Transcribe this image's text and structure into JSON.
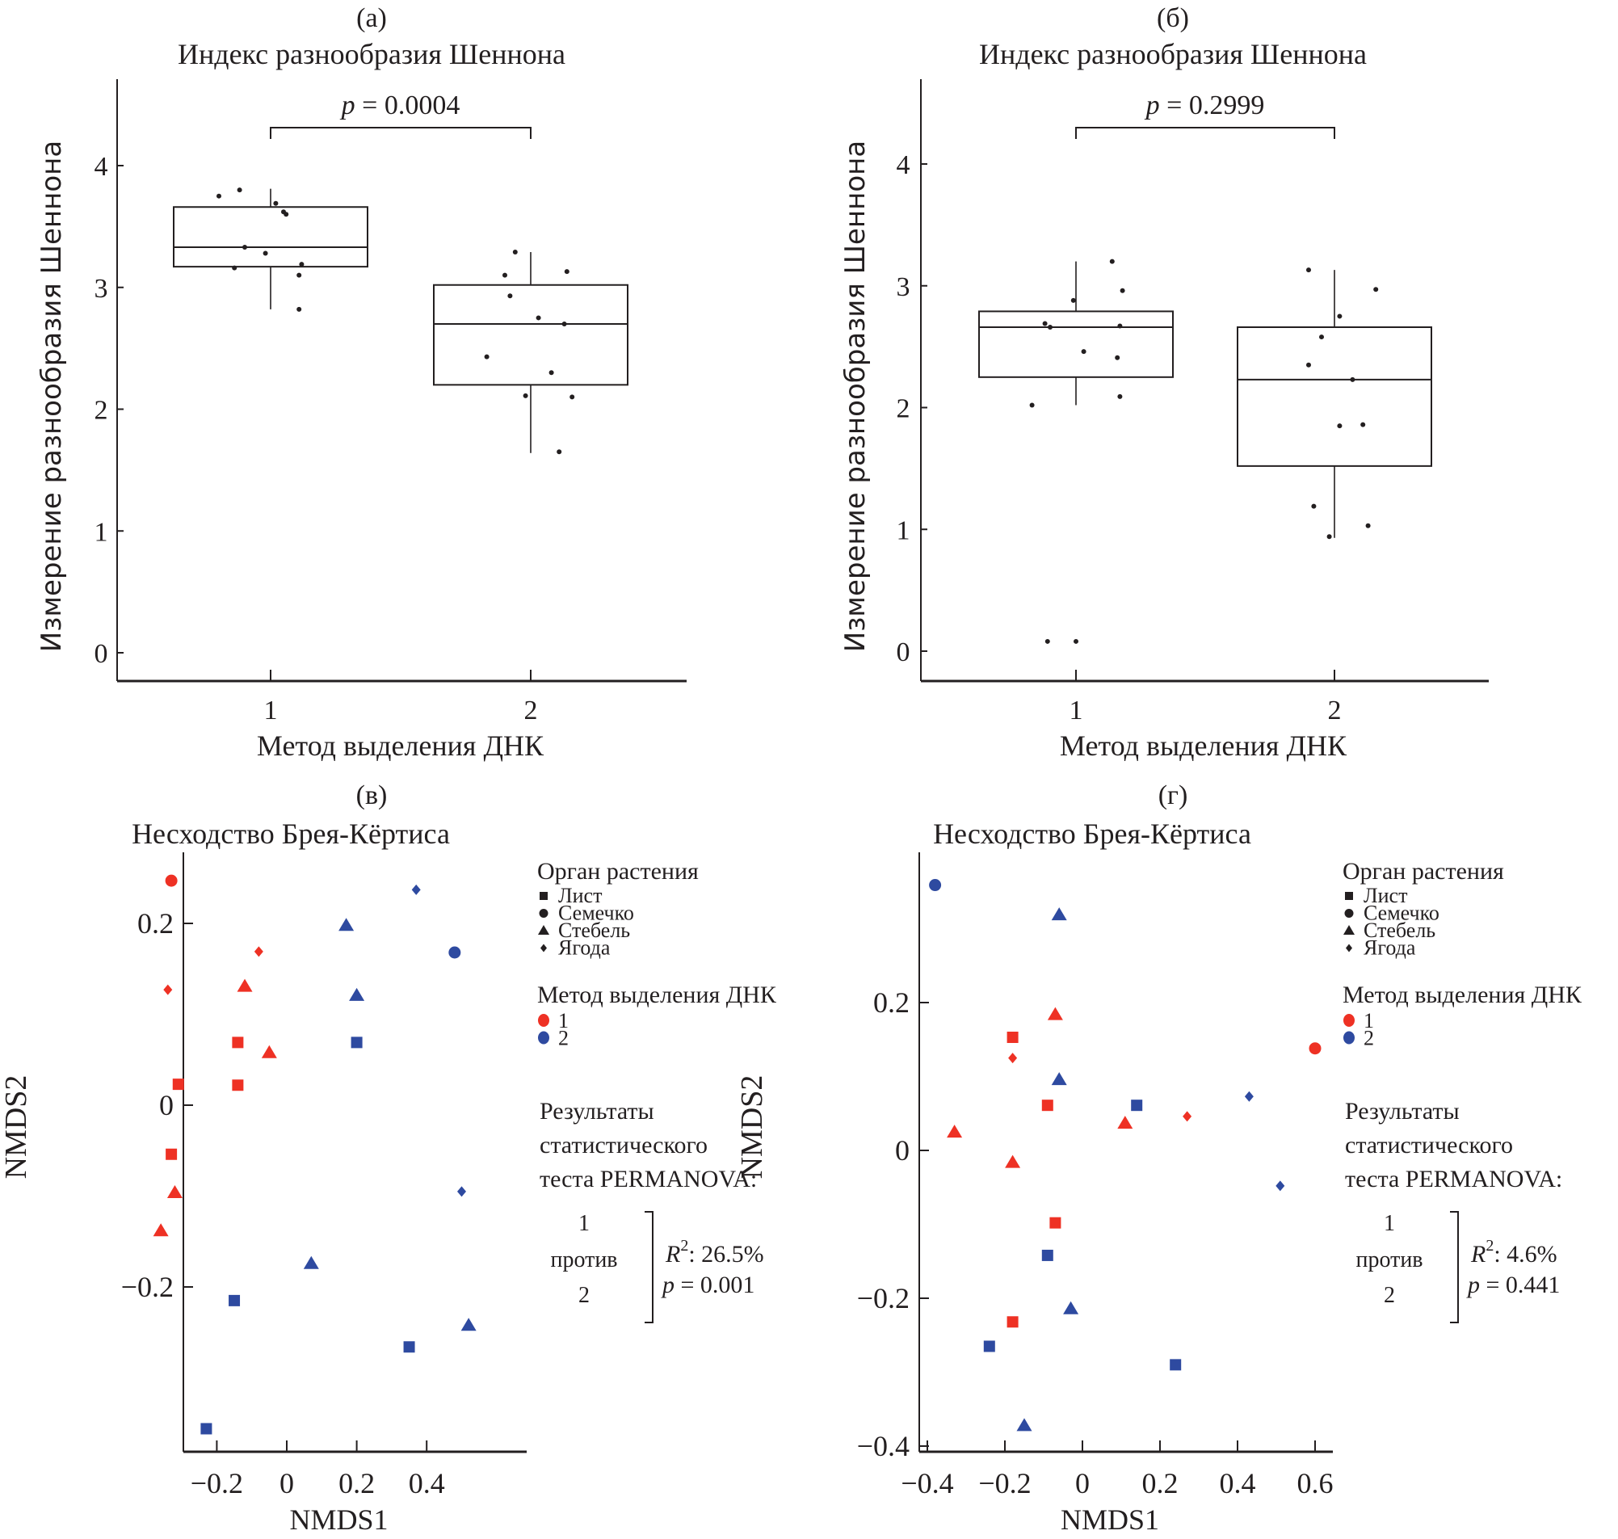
{
  "chart_data": [
    {
      "id": "a",
      "type": "box",
      "panel_label": "(а)",
      "title": "Индекс разнообразия Шеннона",
      "xlabel": "Метод выделения ДНК",
      "ylabel": "Измерение разнообразия Шеннона",
      "categories": [
        "1",
        "2"
      ],
      "yticks": [
        "0",
        "1",
        "2",
        "3",
        "4"
      ],
      "ylim": [
        -0.22,
        4.7
      ],
      "annotation": {
        "p_symbol": "p",
        "text": " = 0.0004"
      },
      "boxes": [
        {
          "name": "1",
          "q1": 3.17,
          "median": 3.33,
          "q3": 3.66,
          "whisker_low": 2.82,
          "whisker_high": 3.81,
          "points": [
            [
              -0.2,
              3.75
            ],
            [
              -0.12,
              3.8
            ],
            [
              0.02,
              3.69
            ],
            [
              0.05,
              3.62
            ],
            [
              0.06,
              3.6
            ],
            [
              -0.1,
              3.33
            ],
            [
              -0.02,
              3.28
            ],
            [
              -0.14,
              3.16
            ],
            [
              0.12,
              3.19
            ],
            [
              0.11,
              3.1
            ],
            [
              0.11,
              2.82
            ]
          ]
        },
        {
          "name": "2",
          "q1": 2.2,
          "median": 2.7,
          "q3": 3.02,
          "whisker_low": 1.64,
          "whisker_high": 3.29,
          "points": [
            [
              -0.06,
              3.29
            ],
            [
              -0.1,
              3.1
            ],
            [
              0.14,
              3.13
            ],
            [
              -0.08,
              2.93
            ],
            [
              0.03,
              2.75
            ],
            [
              0.13,
              2.7
            ],
            [
              -0.17,
              2.43
            ],
            [
              0.08,
              2.3
            ],
            [
              -0.02,
              2.11
            ],
            [
              0.16,
              2.1
            ],
            [
              0.11,
              1.65
            ]
          ]
        }
      ]
    },
    {
      "id": "b",
      "type": "box",
      "panel_label": "(б)",
      "title": "Индекс разнообразия Шеннона",
      "xlabel": "Метод выделения ДНК",
      "ylabel": "Измерение разнообразия Шеннона",
      "categories": [
        "1",
        "2"
      ],
      "yticks": [
        "0",
        "1",
        "2",
        "3",
        "4"
      ],
      "ylim": [
        -0.22,
        4.7
      ],
      "annotation": {
        "p_symbol": "p",
        "text": " = 0.2999"
      },
      "boxes": [
        {
          "name": "1",
          "q1": 2.25,
          "median": 2.66,
          "q3": 2.79,
          "whisker_low": 2.02,
          "whisker_high": 3.2,
          "points": [
            [
              0.14,
              3.2
            ],
            [
              0.18,
              2.96
            ],
            [
              -0.01,
              2.88
            ],
            [
              -0.12,
              2.69
            ],
            [
              -0.1,
              2.66
            ],
            [
              0.17,
              2.67
            ],
            [
              0.03,
              2.46
            ],
            [
              0.16,
              2.41
            ],
            [
              0.17,
              2.09
            ],
            [
              -0.17,
              2.02
            ],
            [
              -0.11,
              0.08
            ],
            [
              0.0,
              0.08
            ]
          ]
        },
        {
          "name": "2",
          "q1": 1.52,
          "median": 2.23,
          "q3": 2.66,
          "whisker_low": 0.93,
          "whisker_high": 3.13,
          "points": [
            [
              -0.1,
              3.13
            ],
            [
              0.16,
              2.97
            ],
            [
              0.02,
              2.75
            ],
            [
              -0.05,
              2.58
            ],
            [
              -0.1,
              2.35
            ],
            [
              0.07,
              2.23
            ],
            [
              0.02,
              1.85
            ],
            [
              0.11,
              1.86
            ],
            [
              -0.08,
              1.19
            ],
            [
              -0.02,
              0.94
            ],
            [
              0.13,
              1.03
            ]
          ]
        }
      ]
    },
    {
      "id": "v",
      "type": "scatter",
      "panel_label": "(в)",
      "title": "Несходство Брея-Кёртиса",
      "xlabel": "NMDS1",
      "ylabel": "NMDS2",
      "xticks": [
        "−0.2",
        "0",
        "0.2",
        "0.4"
      ],
      "xtick_values": [
        -0.2,
        0,
        0.2,
        0.4
      ],
      "yticks": [
        "0.2",
        "0",
        "−0.2"
      ],
      "ytick_values": [
        0.2,
        0,
        -0.2
      ],
      "xlim": [
        -0.4,
        0.56
      ],
      "ylim": [
        -0.37,
        0.28
      ],
      "points": [
        {
          "x": -0.33,
          "y": 0.247,
          "organ": "seed",
          "method": "1"
        },
        {
          "x": -0.08,
          "y": 0.169,
          "organ": "berry",
          "method": "1"
        },
        {
          "x": -0.34,
          "y": 0.127,
          "organ": "berry",
          "method": "1"
        },
        {
          "x": -0.12,
          "y": 0.131,
          "organ": "stem",
          "method": "1"
        },
        {
          "x": -0.05,
          "y": 0.058,
          "organ": "stem",
          "method": "1"
        },
        {
          "x": -0.14,
          "y": 0.069,
          "organ": "leaf",
          "method": "1"
        },
        {
          "x": -0.31,
          "y": 0.023,
          "organ": "leaf",
          "method": "1"
        },
        {
          "x": -0.14,
          "y": 0.022,
          "organ": "leaf",
          "method": "1"
        },
        {
          "x": -0.33,
          "y": -0.054,
          "organ": "leaf",
          "method": "1"
        },
        {
          "x": -0.32,
          "y": -0.096,
          "organ": "stem",
          "method": "1"
        },
        {
          "x": -0.36,
          "y": -0.138,
          "organ": "stem",
          "method": "1"
        },
        {
          "x": 0.37,
          "y": 0.237,
          "organ": "berry",
          "method": "2"
        },
        {
          "x": 0.17,
          "y": 0.198,
          "organ": "stem",
          "method": "2"
        },
        {
          "x": 0.48,
          "y": 0.168,
          "organ": "seed",
          "method": "2"
        },
        {
          "x": 0.2,
          "y": 0.121,
          "organ": "stem",
          "method": "2"
        },
        {
          "x": 0.2,
          "y": 0.069,
          "organ": "leaf",
          "method": "2"
        },
        {
          "x": 0.5,
          "y": -0.095,
          "organ": "berry",
          "method": "2"
        },
        {
          "x": 0.07,
          "y": -0.174,
          "organ": "stem",
          "method": "2"
        },
        {
          "x": -0.15,
          "y": -0.215,
          "organ": "leaf",
          "method": "2"
        },
        {
          "x": 0.52,
          "y": -0.242,
          "organ": "stem",
          "method": "2"
        },
        {
          "x": 0.35,
          "y": -0.266,
          "organ": "leaf",
          "method": "2"
        },
        {
          "x": -0.23,
          "y": -0.356,
          "organ": "leaf",
          "method": "2"
        }
      ],
      "permanova": {
        "group_a": "1",
        "vs": "против",
        "group_b": "2",
        "r2_symbol": "R",
        "r2_sup": "2",
        "r2_text": ": 26.5%",
        "p_symbol": "p",
        "p_text": " = 0.001"
      }
    },
    {
      "id": "g",
      "type": "scatter",
      "panel_label": "(г)",
      "title": "Несходство Брея-Кёртиса",
      "xlabel": "NMDS1",
      "ylabel": "NMDS2",
      "xticks": [
        "−0.4",
        "−0.2",
        "0",
        "0.2",
        "0.4",
        "0.6"
      ],
      "xtick_values": [
        -0.4,
        -0.2,
        0,
        0.2,
        0.4,
        0.6
      ],
      "yticks": [
        "0.2",
        "0",
        "−0.2",
        "−0.4"
      ],
      "ytick_values": [
        0.2,
        0,
        -0.2,
        -0.4
      ],
      "xlim": [
        -0.42,
        0.64
      ],
      "ylim": [
        -0.405,
        0.39
      ],
      "points": [
        {
          "x": -0.38,
          "y": 0.359,
          "organ": "seed",
          "method": "2"
        },
        {
          "x": -0.06,
          "y": 0.319,
          "organ": "stem",
          "method": "2"
        },
        {
          "x": -0.07,
          "y": 0.184,
          "organ": "stem",
          "method": "1"
        },
        {
          "x": -0.18,
          "y": 0.153,
          "organ": "leaf",
          "method": "1"
        },
        {
          "x": -0.18,
          "y": 0.125,
          "organ": "berry",
          "method": "1"
        },
        {
          "x": 0.6,
          "y": 0.138,
          "organ": "seed",
          "method": "1"
        },
        {
          "x": -0.06,
          "y": 0.096,
          "organ": "stem",
          "method": "2"
        },
        {
          "x": -0.09,
          "y": 0.061,
          "organ": "leaf",
          "method": "1"
        },
        {
          "x": 0.14,
          "y": 0.061,
          "organ": "leaf",
          "method": "2"
        },
        {
          "x": 0.43,
          "y": 0.073,
          "organ": "berry",
          "method": "2"
        },
        {
          "x": 0.27,
          "y": 0.046,
          "organ": "berry",
          "method": "1"
        },
        {
          "x": 0.11,
          "y": 0.037,
          "organ": "stem",
          "method": "1"
        },
        {
          "x": -0.33,
          "y": 0.025,
          "organ": "stem",
          "method": "1"
        },
        {
          "x": -0.18,
          "y": -0.016,
          "organ": "stem",
          "method": "1"
        },
        {
          "x": 0.51,
          "y": -0.048,
          "organ": "berry",
          "method": "2"
        },
        {
          "x": -0.07,
          "y": -0.098,
          "organ": "leaf",
          "method": "1"
        },
        {
          "x": -0.09,
          "y": -0.142,
          "organ": "leaf",
          "method": "2"
        },
        {
          "x": -0.03,
          "y": -0.214,
          "organ": "stem",
          "method": "2"
        },
        {
          "x": -0.18,
          "y": -0.232,
          "organ": "leaf",
          "method": "1"
        },
        {
          "x": -0.24,
          "y": -0.265,
          "organ": "leaf",
          "method": "2"
        },
        {
          "x": 0.24,
          "y": -0.29,
          "organ": "leaf",
          "method": "2"
        },
        {
          "x": -0.15,
          "y": -0.372,
          "organ": "stem",
          "method": "2"
        }
      ],
      "permanova": {
        "group_a": "1",
        "vs": "против",
        "group_b": "2",
        "r2_symbol": "R",
        "r2_sup": "2",
        "r2_text": ": 4.6%",
        "p_symbol": "p",
        "p_text": " = 0.441"
      }
    }
  ],
  "legend": {
    "organ_title": "Орган растения",
    "organs": [
      {
        "key": "leaf",
        "label": "Лист",
        "shape": "square"
      },
      {
        "key": "seed",
        "label": "Семечко",
        "shape": "circle"
      },
      {
        "key": "stem",
        "label": "Стебель",
        "shape": "triangle"
      },
      {
        "key": "berry",
        "label": "Ягода",
        "shape": "diamond"
      }
    ],
    "method_title": "Метод выделения ДНК",
    "methods": [
      {
        "key": "1",
        "label": "1",
        "color": "#ee3124"
      },
      {
        "key": "2",
        "label": "2",
        "color": "#2e4aa0"
      }
    ],
    "results_title_lines": [
      "Результаты",
      "статистического",
      "теста PERMANOVA:"
    ]
  }
}
